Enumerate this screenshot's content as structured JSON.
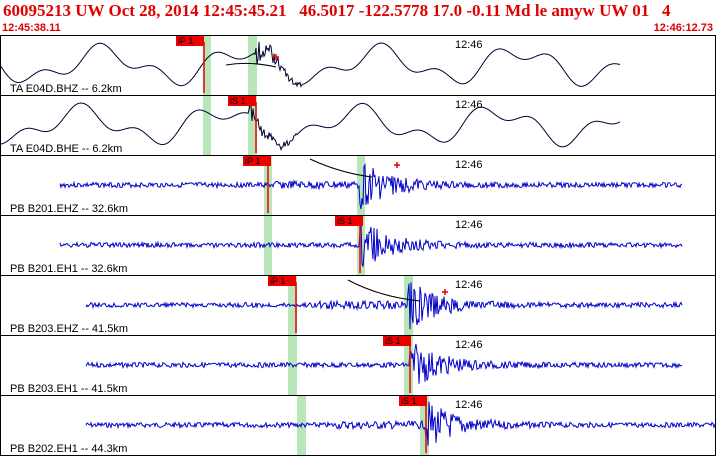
{
  "header": {
    "title": "60095213 UW Oct 28, 2014 12:45:45.21   46.5017 -122.5778 17.0 -0.11 Md le amyw UW 01   4",
    "time_start": "12:45:38.11",
    "time_end": "12:46:12.73"
  },
  "colors": {
    "header_text": "#e00000",
    "trace_lowfreq": "#000033",
    "trace_broadband": "#0000cc",
    "pick_flag": "#ee0000",
    "pick_window": "#b8e6b8",
    "theoretical_curve": "#000000",
    "panel_border": "#000000"
  },
  "chart_data": {
    "type": "seismogram",
    "time_axis": {
      "start": "12:45:38.11",
      "end": "12:46:12.73",
      "minute_marker": "12:46"
    },
    "traces": [
      {
        "label": "TA E04D.BHZ -- 6.2km",
        "pick": "iP 1",
        "marker": "12:46",
        "style": "lowfreq",
        "seed": 1
      },
      {
        "label": "TA E04D.BHE -- 6.2km",
        "pick": "iS 1",
        "marker": "12:46",
        "style": "lowfreq",
        "seed": 2
      },
      {
        "label": "PB B201.EHZ -- 32.6km",
        "pick": "iP 1",
        "marker": "12:46",
        "style": "broadband",
        "seed": 3
      },
      {
        "label": "PB B201.EH1 -- 32.6km",
        "pick": "iS 1",
        "marker": "12:46",
        "style": "broadband",
        "seed": 4
      },
      {
        "label": "PB B203.EHZ -- 41.5km",
        "pick": "iP 1",
        "marker": "12:46",
        "style": "broadband",
        "seed": 5
      },
      {
        "label": "PB B203.EH1 -- 41.5km",
        "pick": "iS 1",
        "marker": "12:46",
        "style": "broadband",
        "seed": 6
      },
      {
        "label": "PB B202.EH1 -- 44.3km",
        "pick": "iS 1",
        "marker": "12:46",
        "style": "broadband",
        "seed": 7
      }
    ]
  }
}
